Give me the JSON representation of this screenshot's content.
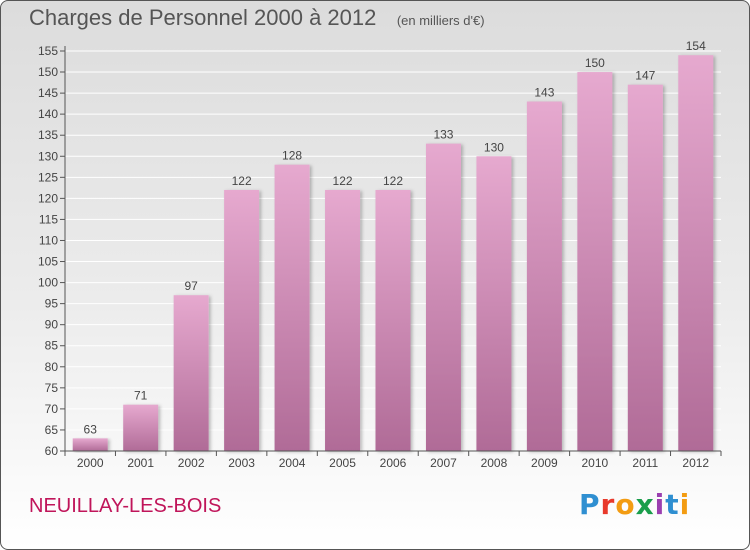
{
  "header": {
    "title": "Charges de Personnel 2000 à 2012",
    "subtitle": "(en milliers d'€)"
  },
  "footer": {
    "commune": "NEUILLAY-LES-BOIS",
    "logo": "Proxiti"
  },
  "colors": {
    "bar_top": "#e6a9cf",
    "bar_bottom": "#b06b97",
    "axis": "#555555",
    "grid": "#ffffff",
    "commune_text": "#c0155a"
  },
  "chart_data": {
    "type": "bar",
    "title": "Charges de Personnel 2000 à 2012",
    "subtitle": "(en milliers d'€)",
    "categories": [
      "2000",
      "2001",
      "2002",
      "2003",
      "2004",
      "2005",
      "2006",
      "2007",
      "2008",
      "2009",
      "2010",
      "2011",
      "2012"
    ],
    "values": [
      63,
      71,
      97,
      122,
      128,
      122,
      122,
      133,
      130,
      143,
      150,
      147,
      154
    ],
    "ylim": [
      60,
      155
    ],
    "yticks": [
      60,
      65,
      70,
      75,
      80,
      85,
      90,
      95,
      100,
      105,
      110,
      115,
      120,
      125,
      130,
      135,
      140,
      145,
      150,
      155
    ],
    "grid": true,
    "xlabel": "",
    "ylabel": ""
  }
}
